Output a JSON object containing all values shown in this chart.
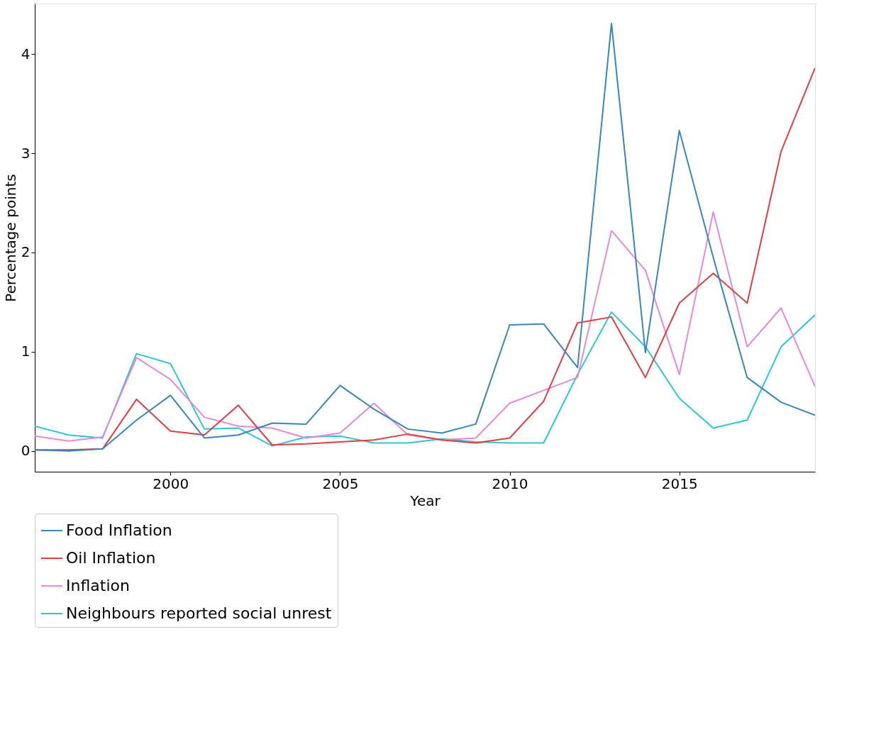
{
  "chart_data": {
    "type": "line",
    "xlabel": "Year",
    "ylabel": "Percentage points",
    "x": [
      1996,
      1997,
      1998,
      1999,
      2000,
      2001,
      2002,
      2003,
      2004,
      2005,
      2006,
      2007,
      2008,
      2009,
      2010,
      2011,
      2012,
      2013,
      2014,
      2015,
      2016,
      2017,
      2018,
      2019
    ],
    "series": [
      {
        "name": "Food Inflation",
        "color": "#3a85c0",
        "values": [
          0.01,
          0.0,
          0.02,
          0.31,
          0.56,
          0.13,
          0.16,
          0.28,
          0.27,
          0.66,
          0.42,
          0.22,
          0.18,
          0.27,
          1.27,
          1.28,
          0.84,
          4.31,
          0.99,
          3.23,
          1.95,
          0.74,
          0.49,
          0.36
        ]
      },
      {
        "name": "Oil Inflation",
        "color": "#dc4040",
        "values": [
          0.01,
          0.01,
          0.02,
          0.52,
          0.2,
          0.16,
          0.46,
          0.06,
          0.07,
          0.09,
          0.11,
          0.17,
          0.11,
          0.08,
          0.13,
          0.5,
          1.29,
          1.35,
          0.74,
          1.49,
          1.79,
          1.49,
          3.02,
          3.86
        ]
      },
      {
        "name": "Inflation",
        "color": "#e68ad2",
        "values": [
          0.15,
          0.1,
          0.14,
          0.94,
          0.72,
          0.34,
          0.25,
          0.23,
          0.13,
          0.18,
          0.48,
          0.16,
          0.11,
          0.13,
          0.48,
          0.61,
          0.74,
          2.22,
          1.82,
          0.77,
          2.41,
          1.05,
          1.44,
          0.65
        ]
      },
      {
        "name": "Neighbours reported social unrest",
        "color": "#2ec6d6",
        "values": [
          0.25,
          0.16,
          0.13,
          0.98,
          0.88,
          0.22,
          0.23,
          0.05,
          0.14,
          0.15,
          0.08,
          0.08,
          0.12,
          0.09,
          0.08,
          0.08,
          0.77,
          1.4,
          1.05,
          0.53,
          0.23,
          0.31,
          1.05,
          1.37
        ]
      }
    ],
    "xlim": [
      1996,
      2019
    ],
    "ylim": [
      -0.21,
      4.51
    ],
    "xticks": [
      2000,
      2005,
      2010,
      2015
    ],
    "yticks": [
      0,
      1,
      2,
      3,
      4
    ],
    "legend": "bottom"
  }
}
